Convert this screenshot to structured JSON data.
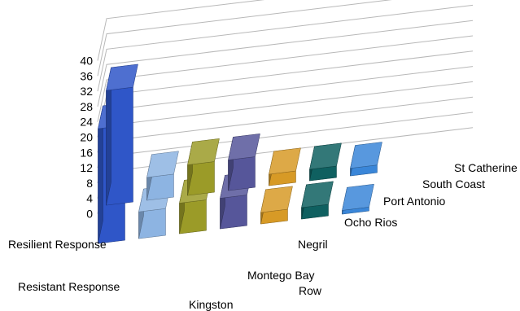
{
  "chart_data": {
    "type": "bar",
    "title": "",
    "xlabel": "",
    "ylabel": "",
    "ylim": [
      0,
      40
    ],
    "yticks": [
      0,
      4,
      8,
      12,
      16,
      20,
      24,
      28,
      32,
      36,
      40
    ],
    "categories": [
      "Kingston",
      "Montego Bay",
      "Negril",
      "Ocho Rios",
      "Port Antonio",
      "South Coast",
      "St Catherine"
    ],
    "category_colors": [
      "#2f56c8",
      "#8db4e2",
      "#9b9b28",
      "#56569a",
      "#d79a26",
      "#0f6060",
      "#3a86d8"
    ],
    "series": [
      {
        "name": "Resistant Response",
        "values": [
          30,
          7,
          8,
          8,
          3,
          3,
          1
        ]
      },
      {
        "name": "Resilient Response",
        "values": [
          30,
          6,
          8,
          8,
          3,
          3,
          2
        ]
      }
    ],
    "row_label": "Row",
    "grid": true
  }
}
